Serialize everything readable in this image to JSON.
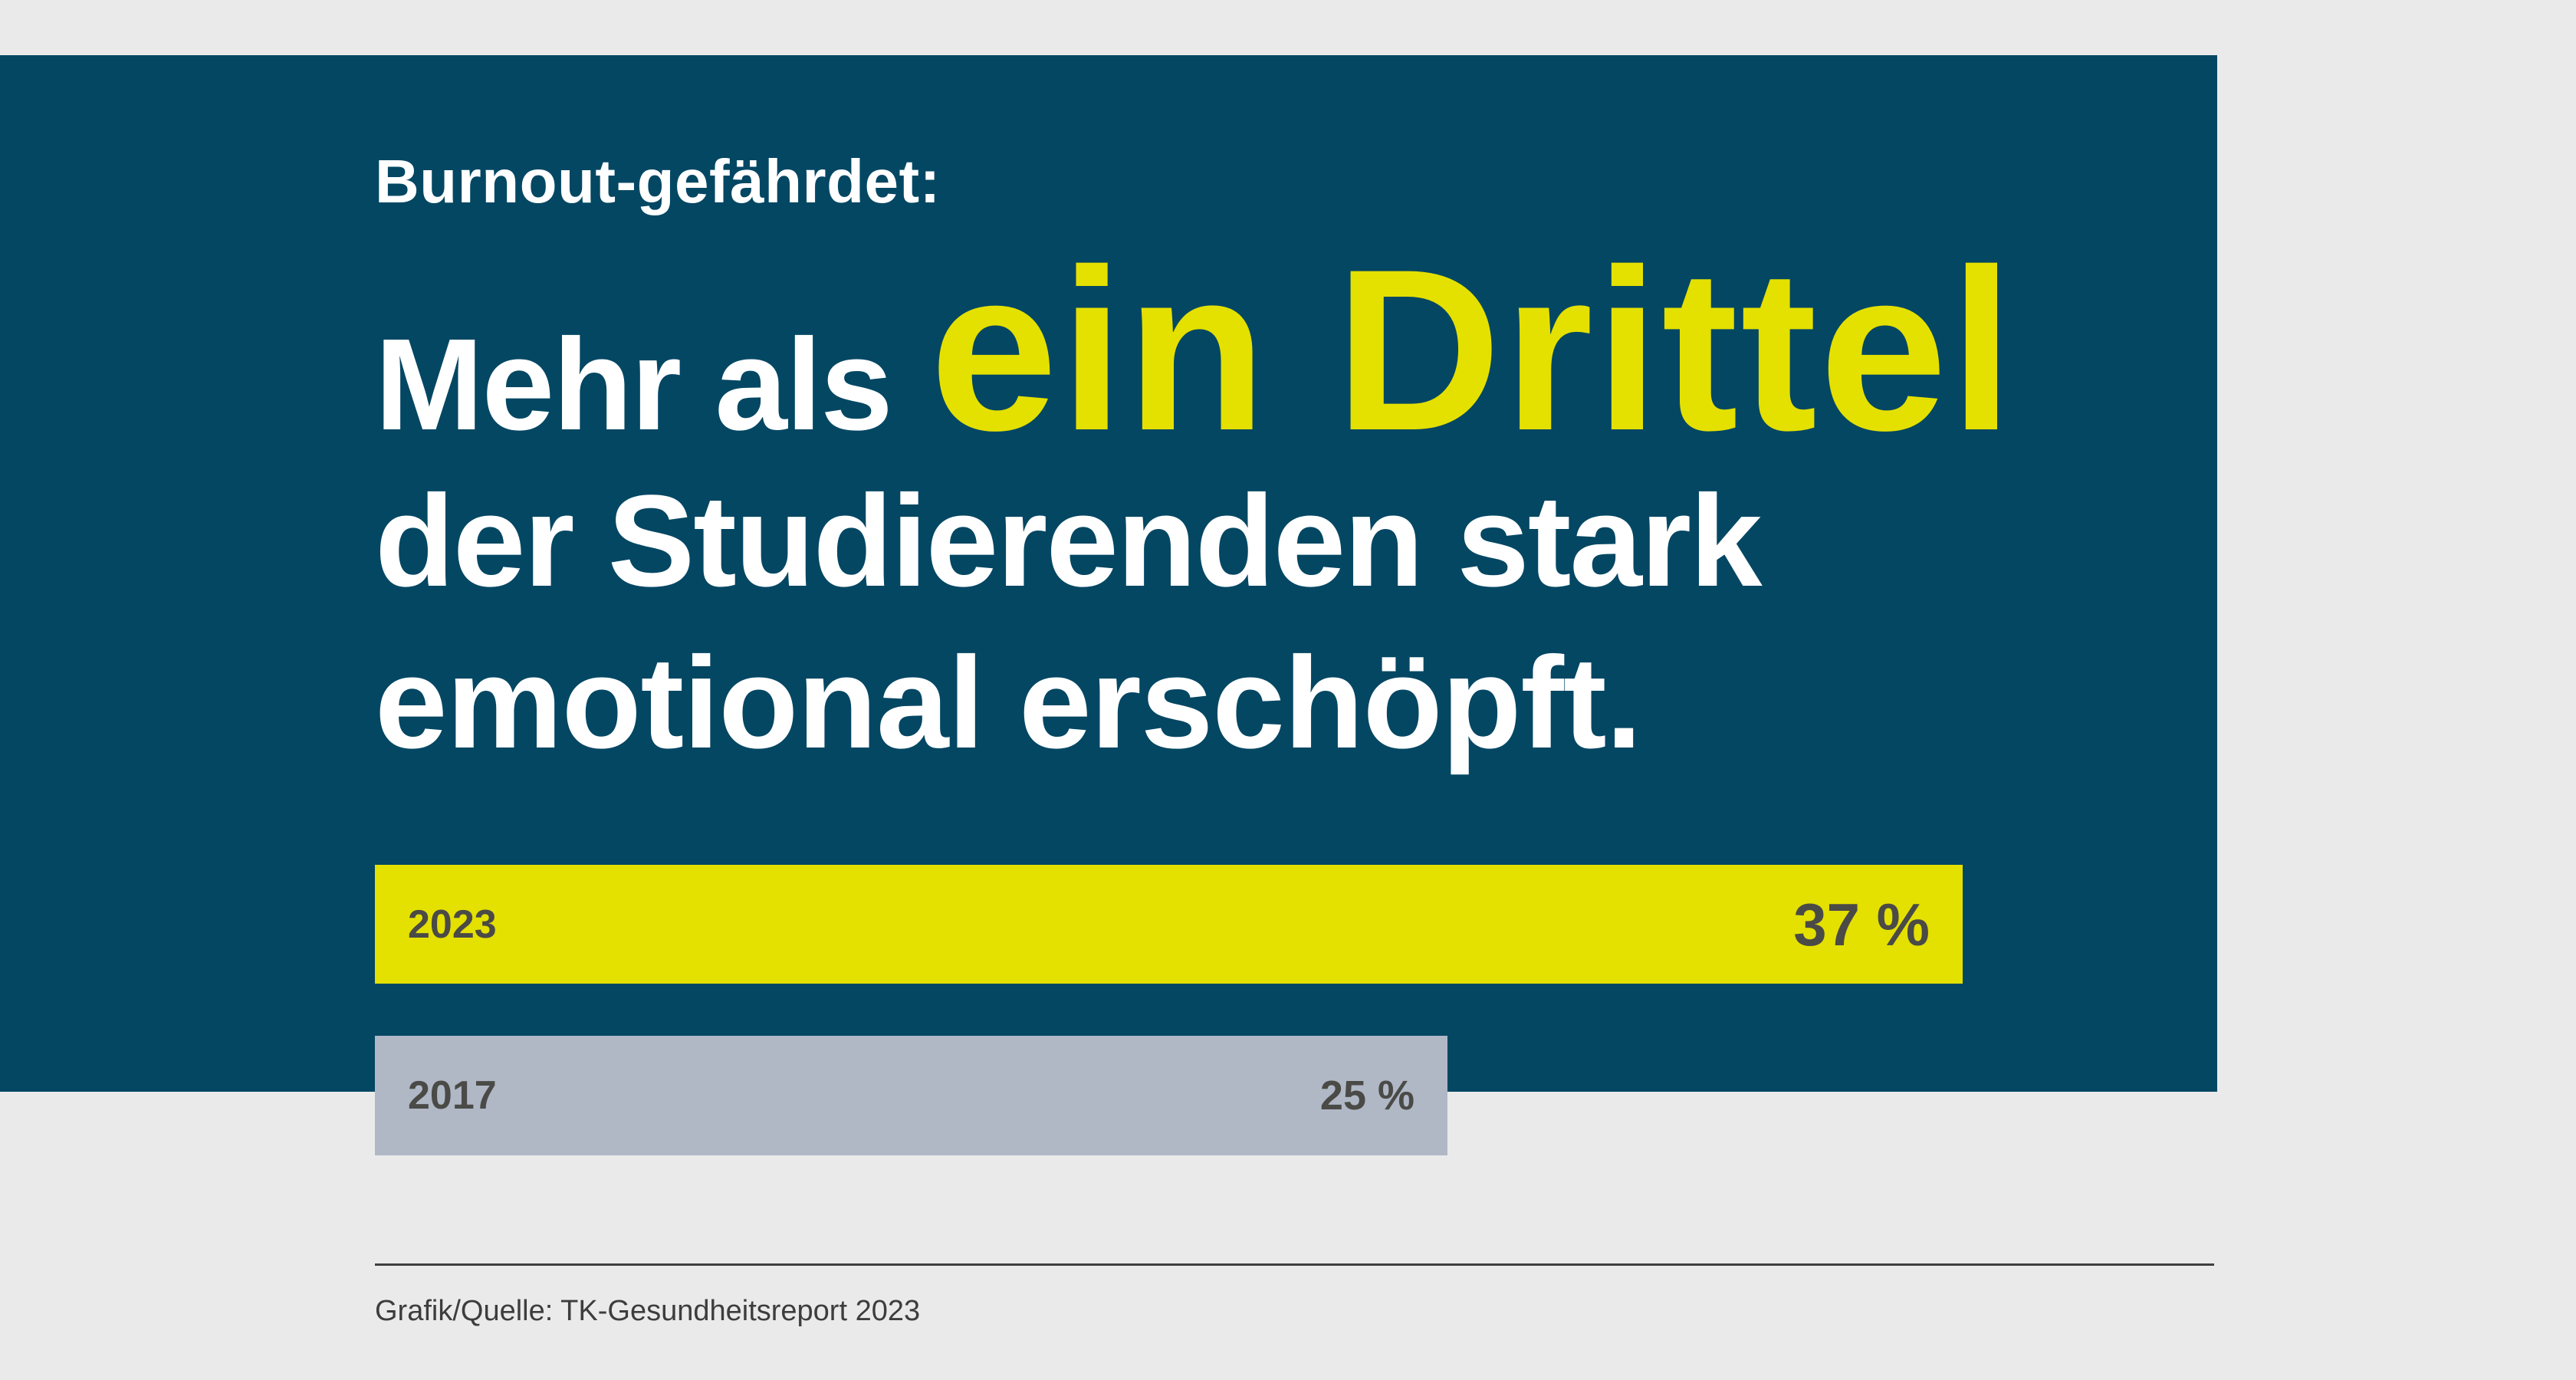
{
  "kicker": "Burnout-gefährdet:",
  "headline": {
    "lead": "Mehr als",
    "highlight": "ein Drittel",
    "line2": "der Studierenden stark",
    "line3": "emotional erschöpft."
  },
  "chart_data": {
    "type": "bar",
    "orientation": "horizontal",
    "title": "Burnout-gefährdet: Mehr als ein Drittel der Studierenden stark emotional erschöpft.",
    "unit": "%",
    "categories": [
      "2023",
      "2017"
    ],
    "values": [
      37,
      25
    ],
    "xlim": [
      0,
      37
    ],
    "value_labels_inside": true,
    "bars": [
      {
        "label": "2023",
        "value": 37,
        "display_value": "37 %",
        "color": "#e4e000",
        "text_color": "#4a4a47"
      },
      {
        "label": "2017",
        "value": 25,
        "display_value": "25 %",
        "color": "#b0b8c6",
        "text_color": "#4a4a47"
      }
    ]
  },
  "footer": {
    "source": "Grafik/Quelle: TK-Gesundheitsreport 2023"
  },
  "colors": {
    "background": "#eaeaeb",
    "panel": "#034763",
    "headline_text": "#ffffff",
    "highlight": "#e4e000",
    "rule": "#3f3f3f",
    "footer_text": "#3d3d3d"
  }
}
